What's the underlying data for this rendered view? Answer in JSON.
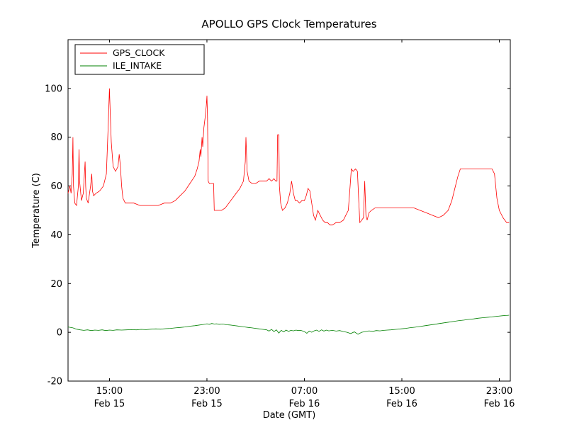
{
  "figure": {
    "background": "#ffffff"
  },
  "chart_data": {
    "type": "line",
    "title": "APOLLO GPS Clock Temperatures",
    "xlabel": "Date (GMT)",
    "ylabel": "Temperature (C)",
    "grid": false,
    "legend_position": "upper left",
    "x_unit": "hours since Feb 15 00:00 GMT",
    "xlim": [
      11.6,
      47.9
    ],
    "ylim": [
      -20,
      120
    ],
    "yticks": [
      -20,
      0,
      20,
      40,
      60,
      80,
      100
    ],
    "xticks": [
      {
        "x": 15,
        "time": "15:00",
        "date": "Feb 15"
      },
      {
        "x": 23,
        "time": "23:00",
        "date": "Feb 15"
      },
      {
        "x": 31,
        "time": "07:00",
        "date": "Feb 16"
      },
      {
        "x": 39,
        "time": "15:00",
        "date": "Feb 16"
      },
      {
        "x": 47,
        "time": "23:00",
        "date": "Feb 16"
      }
    ],
    "series": [
      {
        "name": "GPS_CLOCK",
        "color": "#ff0000",
        "x": [
          11.6,
          11.75,
          11.85,
          11.95,
          12.0,
          12.05,
          12.15,
          12.3,
          12.45,
          12.5,
          12.55,
          12.7,
          12.85,
          13.0,
          13.05,
          13.1,
          13.25,
          13.45,
          13.55,
          13.6,
          13.7,
          13.9,
          14.2,
          14.5,
          14.75,
          14.9,
          15.0,
          15.05,
          15.15,
          15.3,
          15.5,
          15.7,
          15.8,
          15.9,
          16.0,
          16.1,
          16.3,
          16.6,
          17.0,
          17.5,
          18.0,
          18.5,
          19.0,
          19.5,
          20.0,
          20.4,
          20.8,
          21.2,
          21.6,
          22.0,
          22.2,
          22.35,
          22.45,
          22.5,
          22.6,
          22.65,
          22.75,
          22.85,
          22.95,
          23.0,
          23.05,
          23.1,
          23.2,
          23.4,
          23.55,
          23.6,
          23.8,
          24.0,
          24.2,
          24.5,
          24.8,
          25.1,
          25.4,
          25.7,
          26.0,
          26.15,
          26.2,
          26.3,
          26.45,
          26.7,
          27.0,
          27.3,
          27.6,
          27.9,
          28.1,
          28.3,
          28.5,
          28.65,
          28.75,
          28.8,
          28.9,
          28.95,
          29.05,
          29.2,
          29.4,
          29.6,
          29.8,
          29.95,
          30.1,
          30.25,
          30.4,
          30.6,
          30.8,
          31.0,
          31.15,
          31.3,
          31.45,
          31.6,
          31.75,
          31.9,
          32.1,
          32.3,
          32.5,
          32.7,
          32.9,
          33.1,
          33.3,
          33.6,
          33.9,
          34.2,
          34.4,
          34.6,
          34.75,
          34.85,
          35.0,
          35.2,
          35.35,
          35.45,
          35.55,
          35.7,
          35.85,
          35.95,
          36.05,
          36.15,
          36.3,
          36.5,
          36.8,
          37.2,
          37.6,
          38.0,
          38.5,
          39.0,
          39.5,
          40.0,
          40.5,
          41.0,
          41.5,
          42.0,
          42.4,
          42.8,
          43.1,
          43.4,
          43.6,
          43.8,
          44.2,
          44.6,
          45.0,
          45.5,
          46.0,
          46.4,
          46.6,
          46.8,
          47.0,
          47.3,
          47.6,
          47.8
        ],
        "y": [
          57,
          60,
          57,
          65,
          80,
          60,
          53,
          52,
          60,
          75,
          62,
          54,
          57,
          70,
          60,
          55,
          53,
          60,
          65,
          58,
          56,
          57,
          58,
          60,
          65,
          85,
          100,
          92,
          78,
          68,
          66,
          68,
          73,
          68,
          60,
          55,
          53,
          53,
          53,
          52,
          52,
          52,
          52,
          53,
          53,
          54,
          56,
          58,
          61,
          64,
          67,
          70,
          75,
          72,
          80,
          76,
          84,
          88,
          93,
          97,
          88,
          62,
          61,
          61,
          61,
          50,
          50,
          50,
          50,
          51,
          53,
          55,
          57,
          59,
          62,
          70,
          80,
          66,
          62,
          61,
          61,
          62,
          62,
          62,
          63,
          62,
          63,
          62,
          62,
          81,
          81,
          60,
          53,
          50,
          51,
          53,
          57,
          62,
          57,
          54,
          54,
          53,
          54,
          54,
          56,
          59,
          58,
          53,
          48,
          46,
          50,
          48,
          46,
          45,
          45,
          44,
          44,
          45,
          45,
          46,
          48,
          50,
          60,
          67,
          66,
          67,
          66,
          55,
          45,
          46,
          47,
          62,
          48,
          46,
          49,
          50,
          51,
          51,
          51,
          51,
          51,
          51,
          51,
          51,
          50,
          49,
          48,
          47,
          48,
          50,
          54,
          60,
          64,
          67,
          67,
          67,
          67,
          67,
          67,
          67,
          65,
          55,
          50,
          47,
          45,
          45
        ]
      },
      {
        "name": "ILE_INTAKE",
        "color": "#008000",
        "x": [
          11.6,
          12.0,
          12.3,
          12.6,
          12.9,
          13.2,
          13.5,
          13.8,
          14.1,
          14.4,
          14.7,
          15.0,
          15.3,
          15.6,
          16.0,
          16.4,
          16.8,
          17.2,
          17.6,
          18.0,
          18.4,
          18.8,
          19.2,
          19.6,
          20.0,
          20.4,
          20.8,
          21.2,
          21.6,
          22.0,
          22.4,
          22.7,
          23.0,
          23.2,
          23.4,
          23.6,
          23.8,
          24.0,
          24.3,
          24.6,
          24.9,
          25.2,
          25.5,
          25.8,
          26.1,
          26.4,
          26.7,
          27.0,
          27.3,
          27.6,
          27.9,
          28.1,
          28.3,
          28.5,
          28.7,
          28.9,
          29.1,
          29.3,
          29.5,
          29.7,
          29.9,
          30.1,
          30.3,
          30.5,
          30.7,
          31.0,
          31.2,
          31.4,
          31.6,
          31.8,
          32.0,
          32.2,
          32.4,
          32.6,
          32.8,
          33.0,
          33.3,
          33.6,
          33.9,
          34.2,
          34.5,
          34.8,
          35.1,
          35.4,
          35.7,
          36.0,
          36.3,
          36.6,
          36.9,
          37.2,
          37.5,
          37.8,
          38.1,
          38.5,
          38.9,
          39.3,
          39.7,
          40.1,
          40.5,
          40.9,
          41.3,
          41.7,
          42.1,
          42.5,
          42.9,
          43.3,
          43.7,
          44.1,
          44.5,
          44.9,
          45.3,
          45.7,
          46.1,
          46.5,
          46.9,
          47.3,
          47.6,
          47.8
        ],
        "y": [
          2.2,
          1.8,
          1.3,
          1.0,
          0.8,
          1.0,
          0.7,
          0.9,
          0.8,
          1.0,
          0.7,
          0.9,
          0.8,
          1.0,
          0.9,
          1.0,
          1.1,
          1.0,
          1.2,
          1.1,
          1.3,
          1.4,
          1.3,
          1.5,
          1.6,
          1.8,
          2.0,
          2.2,
          2.5,
          2.7,
          3.0,
          3.2,
          3.5,
          3.3,
          3.6,
          3.4,
          3.5,
          3.3,
          3.4,
          3.1,
          3.0,
          2.8,
          2.6,
          2.4,
          2.2,
          2.0,
          1.8,
          1.6,
          1.4,
          1.2,
          1.0,
          0.5,
          1.2,
          0.3,
          1.0,
          -0.3,
          0.8,
          0.2,
          0.9,
          0.4,
          0.8,
          0.6,
          0.9,
          0.7,
          0.8,
          0.3,
          -0.4,
          0.5,
          0.0,
          0.6,
          0.9,
          0.4,
          1.0,
          0.5,
          0.9,
          0.6,
          0.8,
          0.5,
          0.7,
          0.3,
          0.0,
          -0.5,
          0.2,
          -0.8,
          0.0,
          0.3,
          0.6,
          0.4,
          0.7,
          0.6,
          0.8,
          0.9,
          1.0,
          1.2,
          1.4,
          1.6,
          1.9,
          2.1,
          2.4,
          2.7,
          3.0,
          3.3,
          3.6,
          3.9,
          4.2,
          4.5,
          4.8,
          5.0,
          5.3,
          5.5,
          5.8,
          6.0,
          6.2,
          6.4,
          6.6,
          6.8,
          6.9,
          7.0
        ]
      }
    ]
  }
}
